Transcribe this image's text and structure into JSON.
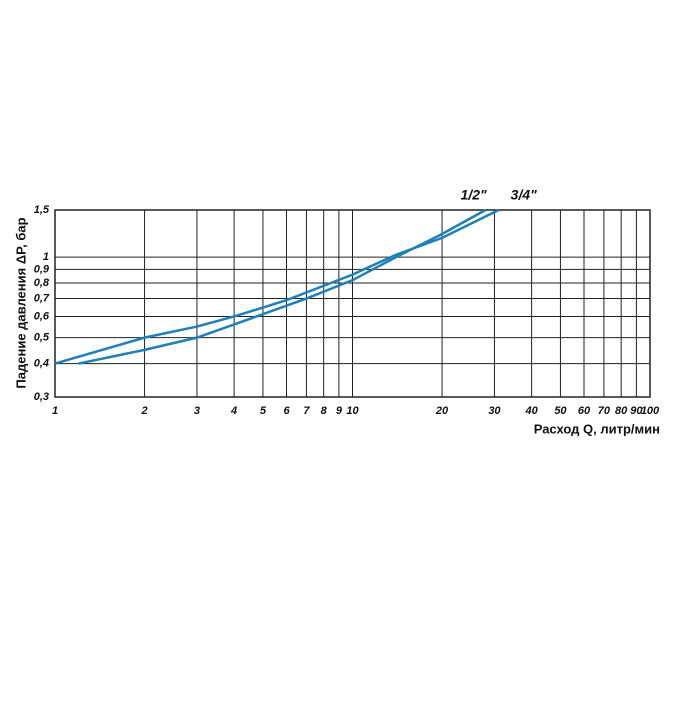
{
  "chart_data": {
    "type": "line",
    "x_label": "Расход Q, литр/мин",
    "y_label": "Падение давления ΔP, бар",
    "log_x": true,
    "log_y": true,
    "grid": true,
    "xlim": [
      1,
      100
    ],
    "ylim": [
      0.3,
      1.5
    ],
    "xticks": [
      1,
      2,
      3,
      4,
      5,
      6,
      7,
      8,
      9,
      10,
      20,
      30,
      40,
      50,
      60,
      70,
      80,
      90,
      100
    ],
    "yticks": [
      {
        "value": 0.3,
        "label": "0,3"
      },
      {
        "value": 0.4,
        "label": "0,4"
      },
      {
        "value": 0.5,
        "label": "0,5"
      },
      {
        "value": 0.6,
        "label": "0,6"
      },
      {
        "value": 0.7,
        "label": "0,7"
      },
      {
        "value": 0.8,
        "label": "0,8"
      },
      {
        "value": 0.9,
        "label": "0,9"
      },
      1,
      {
        "value": 1.5,
        "label": "1,5"
      }
    ],
    "series": [
      {
        "name": "3/4\"",
        "color": "#1f7fb8",
        "x": [
          1,
          2,
          3,
          4,
          6,
          10,
          14,
          20,
          31
        ],
        "values": [
          0.4,
          0.5,
          0.55,
          0.6,
          0.69,
          0.86,
          1.02,
          1.18,
          1.5
        ]
      },
      {
        "name": "1/2\"",
        "color": "#1f7fb8",
        "x": [
          1.2,
          2,
          3,
          4,
          7,
          10,
          14,
          20,
          28
        ],
        "values": [
          0.4,
          0.45,
          0.5,
          0.56,
          0.7,
          0.82,
          1.0,
          1.22,
          1.5
        ]
      }
    ]
  }
}
